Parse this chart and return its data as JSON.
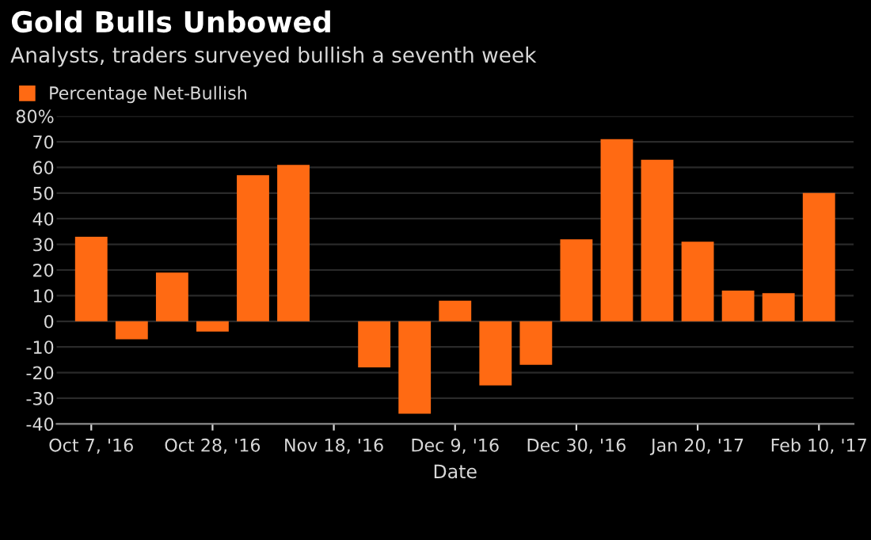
{
  "chart_data": {
    "type": "bar",
    "title": "Gold Bulls Unbowed",
    "subtitle": "Analysts, traders surveyed bullish a seventh week",
    "xlabel": "Date",
    "x": [
      "2016-10-07",
      "2016-10-14",
      "2016-10-21",
      "2016-10-28",
      "2016-11-04",
      "2016-11-11",
      "2016-11-25",
      "2016-12-02",
      "2016-12-09",
      "2016-12-16",
      "2016-12-23",
      "2016-12-30",
      "2017-01-06",
      "2017-01-13",
      "2017-01-20",
      "2017-01-27",
      "2017-02-03",
      "2017-02-10"
    ],
    "series": [
      {
        "name": "Percentage Net-Bullish",
        "color": "#ff6a13",
        "values": [
          33,
          -7,
          19,
          -4,
          57,
          61,
          -18,
          -36,
          8,
          -25,
          -17,
          32,
          71,
          63,
          31,
          12,
          11,
          50
        ]
      }
    ],
    "xlim": [
      "2016-10-01",
      "2017-02-16"
    ],
    "xticks": [
      {
        "value": "2016-10-07",
        "label": "Oct 7, '16"
      },
      {
        "value": "2016-10-28",
        "label": "Oct 28, '16"
      },
      {
        "value": "2016-11-18",
        "label": "Nov 18, '16"
      },
      {
        "value": "2016-12-09",
        "label": "Dec 9, '16"
      },
      {
        "value": "2016-12-30",
        "label": "Dec 30, '16"
      },
      {
        "value": "2017-01-20",
        "label": "Jan 20, '17"
      },
      {
        "value": "2017-02-10",
        "label": "Feb 10, '17"
      }
    ],
    "ylim": [
      -40,
      80
    ],
    "yticks": [
      -40,
      -30,
      -20,
      -10,
      0,
      10,
      20,
      30,
      40,
      50,
      60,
      70,
      {
        "value": 80,
        "label": "80%"
      }
    ],
    "grid": "y",
    "legend": "top left"
  }
}
